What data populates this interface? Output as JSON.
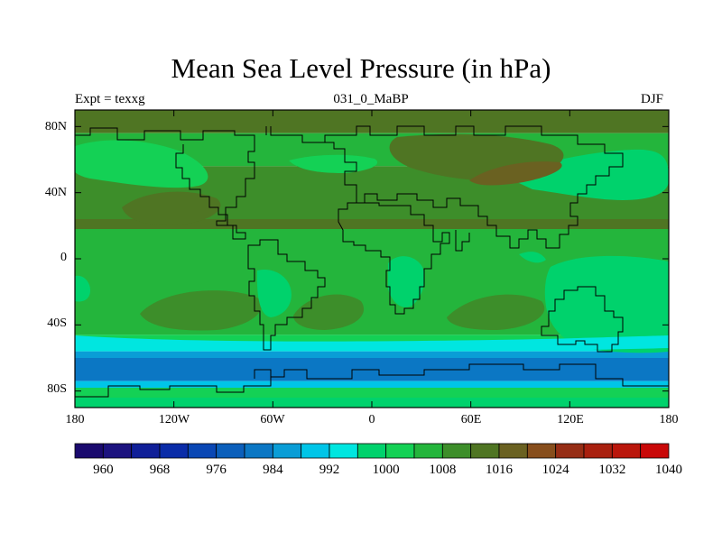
{
  "title": "Mean Sea Level Pressure (in hPa)",
  "subtitle": "031_0_MaBP",
  "left_annotation": "Expt = texxg",
  "right_annotation": "DJF",
  "axes": {
    "lat_labels": [
      "80N",
      "40N",
      "0",
      "40S",
      "80S"
    ],
    "lat_values": [
      80,
      40,
      0,
      -40,
      -80
    ],
    "lon_labels": [
      "180",
      "120W",
      "60W",
      "0",
      "60E",
      "120E",
      "180"
    ],
    "lon_values": [
      -180,
      -120,
      -60,
      0,
      60,
      120,
      180
    ],
    "lat_range": [
      -90,
      90
    ],
    "lon_range": [
      -180,
      180
    ]
  },
  "colorbar": {
    "levels": [
      960,
      964,
      968,
      972,
      976,
      980,
      984,
      988,
      992,
      996,
      1000,
      1004,
      1008,
      1012,
      1016,
      1020,
      1024,
      1028,
      1032,
      1036,
      1040
    ],
    "labels": [
      "960",
      "968",
      "976",
      "984",
      "992",
      "1000",
      "1008",
      "1016",
      "1024",
      "1032",
      "1040"
    ],
    "colors": [
      "#1a0a6e",
      "#1c137f",
      "#101f98",
      "#0a2ca8",
      "#0a47b4",
      "#0b5fbb",
      "#0b77c4",
      "#0a9dd6",
      "#00c5e8",
      "#00e6e0",
      "#00d26c",
      "#14d155",
      "#24b53c",
      "#3d8e2a",
      "#4f7523",
      "#6a6121",
      "#874e1c",
      "#962d15",
      "#a9200f",
      "#ba160b",
      "#c90808"
    ]
  },
  "map": {
    "field": "mean sea level pressure",
    "units": "hPa",
    "zonal_bands": [
      {
        "lat_from": 90,
        "lat_to": 76,
        "level": 1016
      },
      {
        "lat_from": 76,
        "lat_to": 56,
        "level": 1008
      },
      {
        "lat_from": 56,
        "lat_to": 24,
        "level": 1012
      },
      {
        "lat_from": 24,
        "lat_to": 18,
        "level": 1016
      },
      {
        "lat_from": 18,
        "lat_to": -46,
        "level": 1008
      },
      {
        "lat_from": -46,
        "lat_to": -52,
        "level": 1004
      },
      {
        "lat_from": -52,
        "lat_to": -56,
        "level": 996
      },
      {
        "lat_from": -56,
        "lat_to": -60,
        "level": 988
      },
      {
        "lat_from": -60,
        "lat_to": -74,
        "level": 984
      },
      {
        "lat_from": -74,
        "lat_to": -78,
        "level": 992
      },
      {
        "lat_from": -78,
        "lat_to": -84,
        "level": 1004
      },
      {
        "lat_from": -84,
        "lat_to": -90,
        "level": 1000
      }
    ]
  }
}
